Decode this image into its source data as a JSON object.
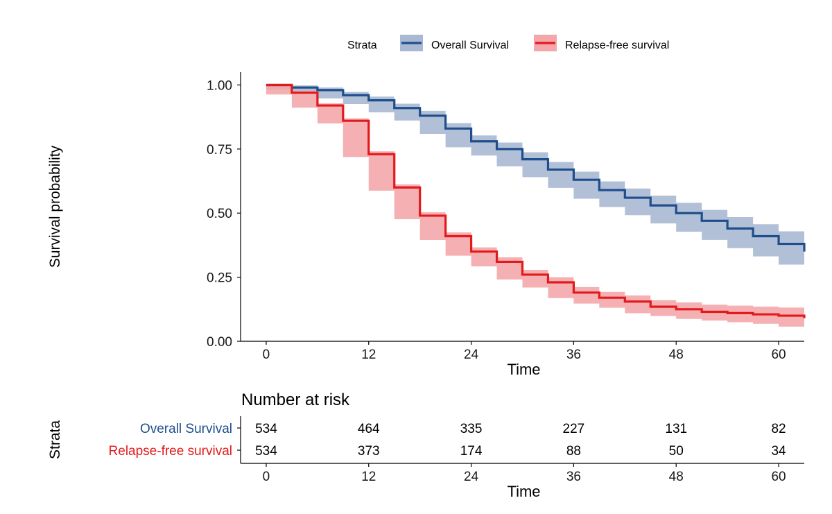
{
  "chart_data": [
    {
      "type": "line",
      "title": "",
      "xlabel": "Time",
      "ylabel": "Survival probability",
      "xlim": [
        -3,
        63
      ],
      "ylim": [
        0,
        1.05
      ],
      "xticks": [
        "0",
        "12",
        "24",
        "36",
        "48",
        "60"
      ],
      "xtick_values": [
        0,
        12,
        24,
        36,
        48,
        60
      ],
      "yticks": [
        "0.00",
        "0.25",
        "0.50",
        "0.75",
        "1.00"
      ],
      "ytick_values": [
        0,
        0.25,
        0.5,
        0.75,
        1.0
      ],
      "grid": false,
      "confidence_bands": true,
      "legend": {
        "position": "top",
        "title": "Strata",
        "entries": [
          "Overall Survival",
          "Relapse-free survival"
        ]
      },
      "colors": {
        "Overall Survival": "#1f4e8c",
        "Relapse-free survival": "#e31a1c"
      },
      "series": [
        {
          "name": "Overall Survival",
          "x": [
            0,
            3,
            6,
            9,
            12,
            15,
            18,
            21,
            24,
            27,
            30,
            33,
            36,
            39,
            42,
            45,
            48,
            51,
            54,
            57,
            60,
            63
          ],
          "y": [
            1.0,
            0.99,
            0.98,
            0.96,
            0.94,
            0.91,
            0.88,
            0.83,
            0.78,
            0.75,
            0.71,
            0.67,
            0.63,
            0.59,
            0.56,
            0.53,
            0.5,
            0.47,
            0.44,
            0.41,
            0.38,
            0.35
          ]
        },
        {
          "name": "Relapse-free survival",
          "x": [
            0,
            3,
            6,
            9,
            12,
            15,
            18,
            21,
            24,
            27,
            30,
            33,
            36,
            39,
            42,
            45,
            48,
            51,
            54,
            57,
            60,
            63
          ],
          "y": [
            1.0,
            0.97,
            0.92,
            0.86,
            0.73,
            0.6,
            0.49,
            0.41,
            0.35,
            0.31,
            0.26,
            0.23,
            0.19,
            0.17,
            0.155,
            0.135,
            0.125,
            0.115,
            0.11,
            0.105,
            0.1,
            0.09
          ]
        }
      ]
    },
    {
      "type": "table",
      "title": "Number at risk",
      "xlabel": "Time",
      "ylabel": "Strata",
      "xticks": [
        "0",
        "12",
        "24",
        "36",
        "48",
        "60"
      ],
      "xtick_values": [
        0,
        12,
        24,
        36,
        48,
        60
      ],
      "rows": [
        {
          "name": "Overall Survival",
          "color": "#1f4e8c",
          "values": [
            "534",
            "464",
            "335",
            "227",
            "131",
            "82"
          ]
        },
        {
          "name": "Relapse-free survival",
          "color": "#e31a1c",
          "values": [
            "534",
            "373",
            "174",
            "88",
            "50",
            "34"
          ]
        }
      ]
    }
  ]
}
